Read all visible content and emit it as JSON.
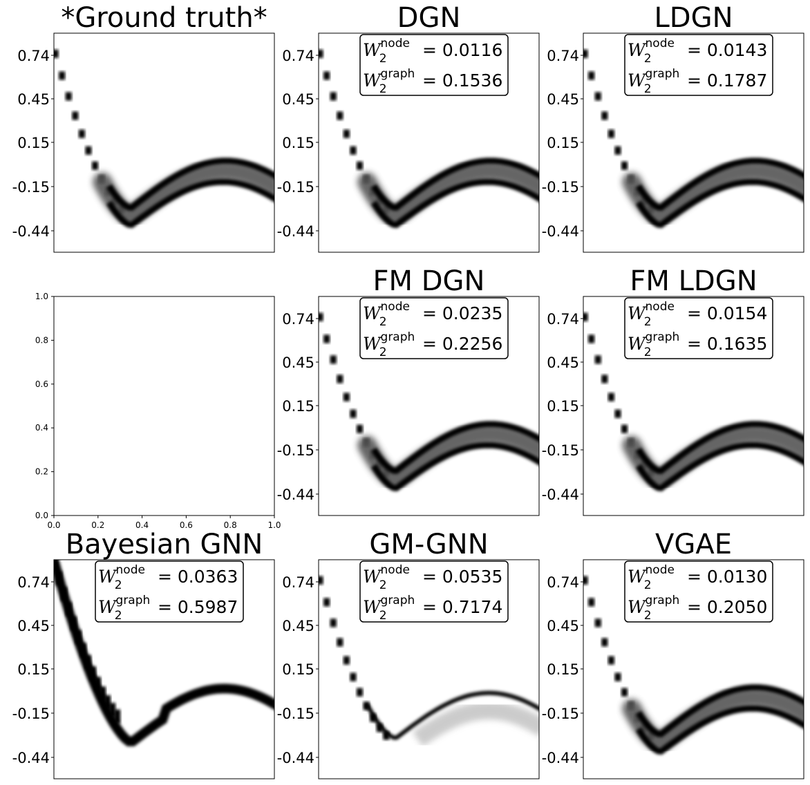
{
  "chart_data": [
    {
      "type": "heatmap",
      "title": "*Ground truth*",
      "y_ticks": [
        "0.74",
        "0.45",
        "0.15",
        "-0.15",
        "-0.44"
      ],
      "x_ticks": [],
      "metrics": null,
      "style": "gt"
    },
    {
      "type": "heatmap",
      "title": "DGN",
      "y_ticks": [
        "0.74",
        "0.45",
        "0.15",
        "-0.15",
        "-0.44"
      ],
      "x_ticks": [],
      "metrics": {
        "node": "0.0116",
        "graph": "0.1536"
      },
      "style": "split"
    },
    {
      "type": "heatmap",
      "title": "LDGN",
      "y_ticks": [
        "0.74",
        "0.45",
        "0.15",
        "-0.15",
        "-0.44"
      ],
      "x_ticks": [],
      "metrics": {
        "node": "0.0143",
        "graph": "0.1787"
      },
      "style": "split"
    },
    {
      "type": "empty",
      "title": "",
      "y_ticks": [
        "0.0",
        "0.2",
        "0.4",
        "0.6",
        "0.8",
        "1.0"
      ],
      "x_ticks": [
        "0.0",
        "0.2",
        "0.4",
        "0.6",
        "0.8",
        "1.0"
      ],
      "xlim": [
        0,
        1
      ],
      "ylim": [
        0,
        1
      ],
      "metrics": null
    },
    {
      "type": "heatmap",
      "title": "FM DGN",
      "y_ticks": [
        "0.74",
        "0.45",
        "0.15",
        "-0.15",
        "-0.44"
      ],
      "x_ticks": [],
      "metrics": {
        "node": "0.0235",
        "graph": "0.2256"
      },
      "style": "split"
    },
    {
      "type": "heatmap",
      "title": "FM LDGN",
      "y_ticks": [
        "0.74",
        "0.45",
        "0.15",
        "-0.15",
        "-0.44"
      ],
      "x_ticks": [],
      "metrics": {
        "node": "0.0154",
        "graph": "0.1635"
      },
      "style": "split"
    },
    {
      "type": "heatmap",
      "title": "Bayesian GNN",
      "y_ticks": [
        "0.74",
        "0.45",
        "0.15",
        "-0.15",
        "-0.44"
      ],
      "x_ticks": [],
      "metrics": {
        "node": "0.0363",
        "graph": "0.5987"
      },
      "style": "bayes"
    },
    {
      "type": "heatmap",
      "title": "GM-GNN",
      "y_ticks": [
        "0.74",
        "0.45",
        "0.15",
        "-0.15",
        "-0.44"
      ],
      "x_ticks": [],
      "metrics": {
        "node": "0.0535",
        "graph": "0.7174"
      },
      "style": "gm"
    },
    {
      "type": "heatmap",
      "title": "VGAE",
      "y_ticks": [
        "0.74",
        "0.45",
        "0.15",
        "-0.15",
        "-0.44"
      ],
      "x_ticks": [],
      "metrics": {
        "node": "0.0130",
        "graph": "0.2050"
      },
      "style": "split"
    }
  ],
  "labels": {
    "w_symbol": "W",
    "sub": "2",
    "node_label": "node",
    "graph_label": "graph",
    "equals": "="
  }
}
